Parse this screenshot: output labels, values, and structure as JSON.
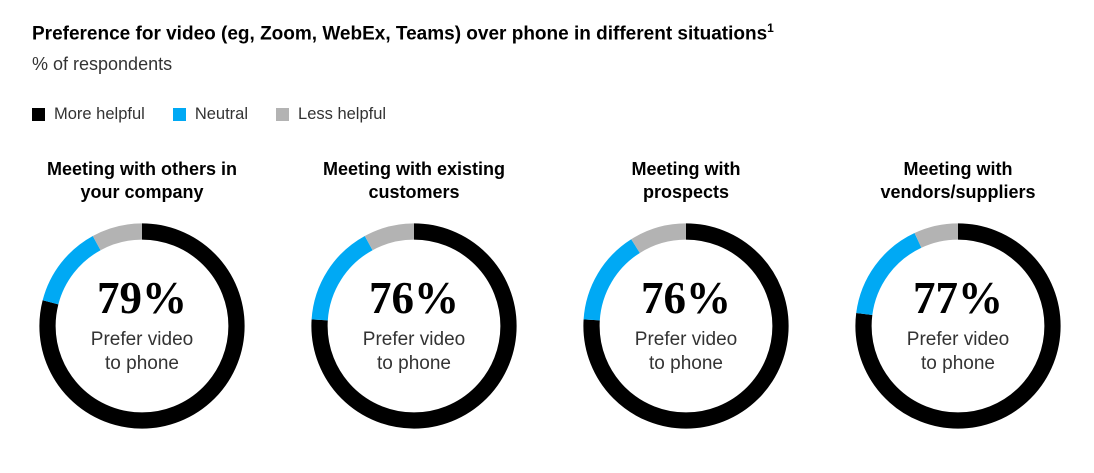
{
  "header": {
    "title": "Preference for video (eg, Zoom, WebEx, Teams) over phone in different situations",
    "title_note": "1",
    "subtitle": "% of respondents"
  },
  "legend": {
    "items": [
      {
        "label": "More helpful",
        "color": "#000000"
      },
      {
        "label": "Neutral",
        "color": "#00A9F4"
      },
      {
        "label": "Less helpful",
        "color": "#B3B3B3"
      }
    ]
  },
  "chart_data": {
    "type": "pie",
    "subtype": "donut",
    "unit": "% of respondents",
    "series_labels": [
      "More helpful",
      "Neutral",
      "Less helpful"
    ],
    "colors": [
      "#000000",
      "#00A9F4",
      "#B3B3B3"
    ],
    "arc_start": "top",
    "arc_direction": "clockwise",
    "charts": [
      {
        "title_lines": [
          "Meeting with others in",
          "your company"
        ],
        "center_value": "79%",
        "center_caption": "Prefer video to phone",
        "values": [
          79,
          13,
          8
        ]
      },
      {
        "title_lines": [
          "Meeting with existing",
          "customers"
        ],
        "center_value": "76%",
        "center_caption": "Prefer video to phone",
        "values": [
          76,
          16,
          8
        ]
      },
      {
        "title_lines": [
          "Meeting with",
          "prospects"
        ],
        "center_value": "76%",
        "center_caption": "Prefer video to phone",
        "values": [
          76,
          15,
          9
        ]
      },
      {
        "title_lines": [
          "Meeting with",
          "vendors/suppliers"
        ],
        "center_value": "77%",
        "center_caption": "Prefer video to phone",
        "values": [
          77,
          16,
          7
        ]
      }
    ]
  }
}
